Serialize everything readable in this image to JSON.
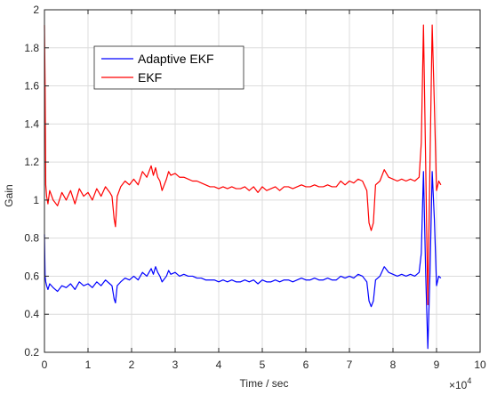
{
  "chart_data": {
    "type": "line",
    "title": "",
    "xlabel": "Time / sec",
    "ylabel": "Gain",
    "x_exponent_label": "×10",
    "x_exponent_power": "4",
    "xlim": [
      0,
      100000
    ],
    "ylim": [
      0.2,
      2
    ],
    "grid": true,
    "legend_position": "top-left",
    "x_ticks": [
      0,
      10000,
      20000,
      30000,
      40000,
      50000,
      60000,
      70000,
      80000,
      90000,
      100000
    ],
    "x_tick_labels": [
      "0",
      "1",
      "2",
      "3",
      "4",
      "5",
      "6",
      "7",
      "8",
      "9",
      "10"
    ],
    "y_ticks": [
      0.2,
      0.4,
      0.6,
      0.8,
      1.0,
      1.2,
      1.4,
      1.6,
      1.8,
      2.0
    ],
    "y_tick_labels": [
      "0.2",
      "0.4",
      "0.6",
      "0.8",
      "1",
      "1.2",
      "1.4",
      "1.6",
      "1.8",
      "2"
    ],
    "series": [
      {
        "name": "Adaptive EKF",
        "color": "#0000ff",
        "x": [
          0,
          150,
          300,
          500,
          800,
          1200,
          2000,
          3000,
          4000,
          5000,
          6000,
          7000,
          8000,
          9000,
          10000,
          11000,
          12000,
          13000,
          14000,
          15000,
          15500,
          16000,
          16300,
          16700,
          17500,
          18500,
          19500,
          20500,
          21500,
          22500,
          23500,
          24500,
          25000,
          25500,
          26000,
          26500,
          27000,
          28000,
          28500,
          29000,
          30000,
          31000,
          32000,
          33000,
          34000,
          35000,
          36000,
          37000,
          38000,
          39000,
          40000,
          41000,
          42000,
          43000,
          44000,
          45000,
          46000,
          47000,
          48000,
          49000,
          50000,
          51000,
          52000,
          53000,
          54000,
          55000,
          56000,
          57000,
          58000,
          59000,
          60000,
          61000,
          62000,
          63000,
          64000,
          65000,
          66000,
          67000,
          68000,
          69000,
          70000,
          71000,
          72000,
          73000,
          74000,
          74500,
          75000,
          75500,
          76000,
          77000,
          78000,
          79000,
          80000,
          81000,
          82000,
          83000,
          84000,
          85000,
          86000,
          86500,
          87000,
          87500,
          88000,
          88500,
          89000,
          89500,
          90000,
          90500,
          91000
        ],
        "y": [
          0.82,
          0.6,
          0.57,
          0.55,
          0.53,
          0.56,
          0.54,
          0.52,
          0.55,
          0.54,
          0.56,
          0.53,
          0.57,
          0.55,
          0.56,
          0.54,
          0.57,
          0.55,
          0.58,
          0.56,
          0.55,
          0.48,
          0.46,
          0.55,
          0.57,
          0.59,
          0.58,
          0.6,
          0.58,
          0.62,
          0.6,
          0.64,
          0.61,
          0.65,
          0.62,
          0.6,
          0.57,
          0.6,
          0.63,
          0.61,
          0.62,
          0.6,
          0.61,
          0.6,
          0.6,
          0.59,
          0.59,
          0.58,
          0.58,
          0.58,
          0.57,
          0.58,
          0.57,
          0.58,
          0.57,
          0.57,
          0.58,
          0.57,
          0.58,
          0.56,
          0.58,
          0.57,
          0.57,
          0.58,
          0.57,
          0.58,
          0.58,
          0.57,
          0.58,
          0.59,
          0.58,
          0.58,
          0.59,
          0.58,
          0.58,
          0.59,
          0.58,
          0.58,
          0.6,
          0.59,
          0.6,
          0.59,
          0.61,
          0.6,
          0.57,
          0.47,
          0.44,
          0.47,
          0.58,
          0.6,
          0.65,
          0.62,
          0.61,
          0.6,
          0.61,
          0.6,
          0.61,
          0.6,
          0.62,
          0.72,
          1.15,
          0.62,
          0.22,
          0.62,
          1.15,
          0.9,
          0.55,
          0.6,
          0.59
        ]
      },
      {
        "name": "EKF",
        "color": "#ff0000",
        "x": [
          0,
          150,
          300,
          500,
          800,
          1200,
          2000,
          3000,
          4000,
          5000,
          6000,
          7000,
          8000,
          9000,
          10000,
          11000,
          12000,
          13000,
          14000,
          15000,
          15500,
          16000,
          16300,
          16700,
          17500,
          18500,
          19500,
          20500,
          21500,
          22500,
          23500,
          24500,
          25000,
          25500,
          26000,
          26500,
          27000,
          28000,
          28500,
          29000,
          30000,
          31000,
          32000,
          33000,
          34000,
          35000,
          36000,
          37000,
          38000,
          39000,
          40000,
          41000,
          42000,
          43000,
          44000,
          45000,
          46000,
          47000,
          48000,
          49000,
          50000,
          51000,
          52000,
          53000,
          54000,
          55000,
          56000,
          57000,
          58000,
          59000,
          60000,
          61000,
          62000,
          63000,
          64000,
          65000,
          66000,
          67000,
          68000,
          69000,
          70000,
          71000,
          72000,
          73000,
          74000,
          74500,
          75000,
          75500,
          76000,
          77000,
          78000,
          79000,
          80000,
          81000,
          82000,
          83000,
          84000,
          85000,
          86000,
          86500,
          87000,
          87500,
          88000,
          88500,
          89000,
          89500,
          90000,
          90500,
          91000
        ],
        "y": [
          1.92,
          1.6,
          1.08,
          1.02,
          0.98,
          1.05,
          1.0,
          0.97,
          1.04,
          1.0,
          1.05,
          0.98,
          1.06,
          1.02,
          1.04,
          1.0,
          1.06,
          1.02,
          1.07,
          1.04,
          1.02,
          0.9,
          0.86,
          1.02,
          1.07,
          1.1,
          1.08,
          1.11,
          1.08,
          1.15,
          1.12,
          1.18,
          1.13,
          1.17,
          1.12,
          1.1,
          1.05,
          1.11,
          1.15,
          1.13,
          1.14,
          1.12,
          1.12,
          1.11,
          1.1,
          1.1,
          1.09,
          1.08,
          1.07,
          1.07,
          1.06,
          1.07,
          1.06,
          1.07,
          1.06,
          1.06,
          1.07,
          1.05,
          1.07,
          1.04,
          1.07,
          1.05,
          1.06,
          1.07,
          1.05,
          1.07,
          1.07,
          1.06,
          1.07,
          1.08,
          1.07,
          1.07,
          1.08,
          1.07,
          1.07,
          1.08,
          1.07,
          1.07,
          1.1,
          1.08,
          1.1,
          1.09,
          1.11,
          1.1,
          1.05,
          0.88,
          0.84,
          0.88,
          1.08,
          1.1,
          1.16,
          1.12,
          1.11,
          1.1,
          1.11,
          1.1,
          1.11,
          1.1,
          1.12,
          1.3,
          1.92,
          1.2,
          0.45,
          1.2,
          1.92,
          1.5,
          1.05,
          1.1,
          1.08
        ]
      }
    ]
  }
}
